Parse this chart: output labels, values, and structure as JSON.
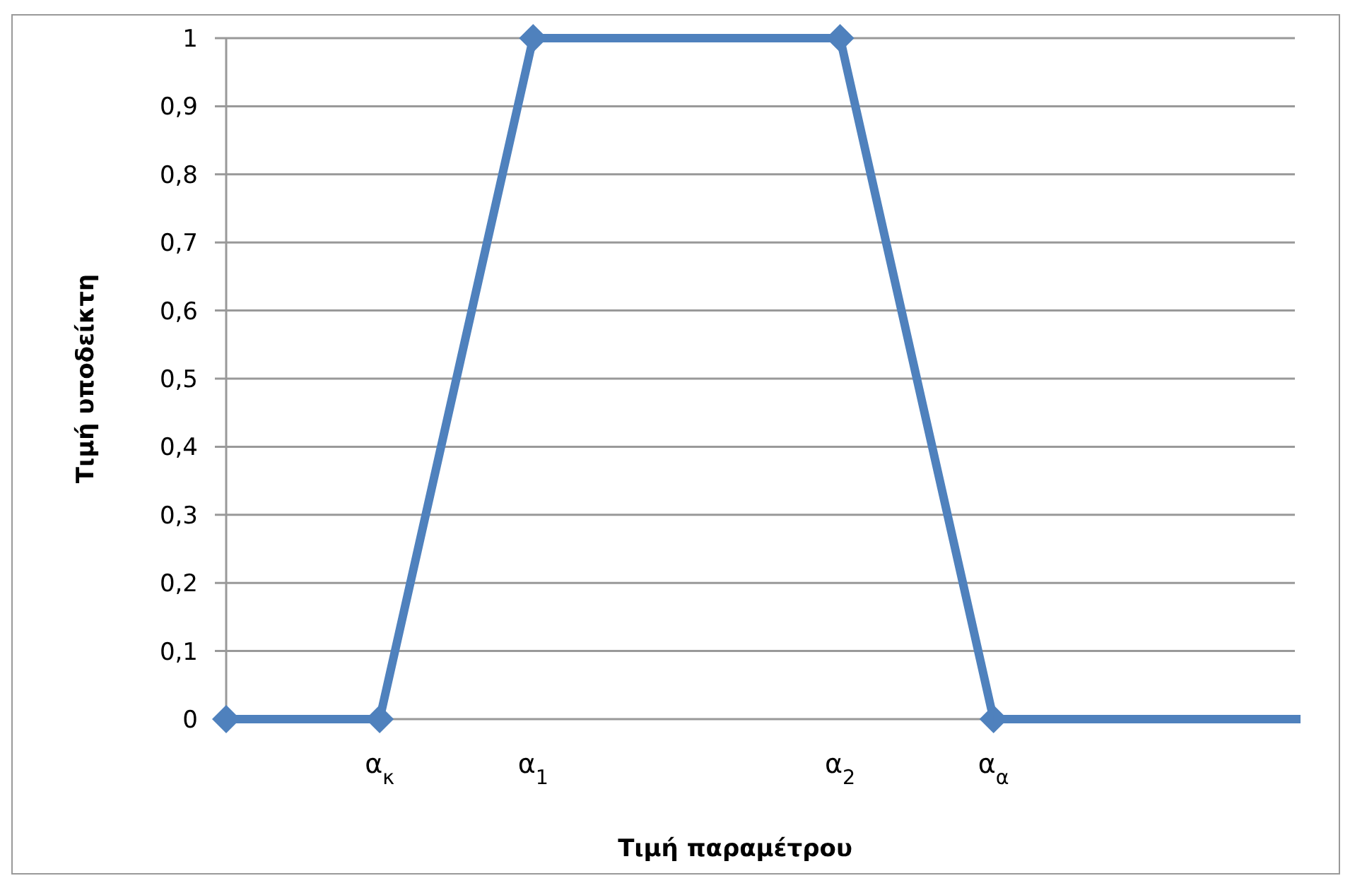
{
  "chart_data": {
    "type": "line",
    "xlabel": "Τιμή παραμέτρου",
    "ylabel": "Τιμή υποδείκτη",
    "categories": [
      null,
      "α$_{κ}$",
      "α$_{1}$",
      null,
      "α$_{2}$",
      "α$_{α}$",
      null,
      null
    ],
    "ylim": [
      0,
      1
    ],
    "yticks": [
      {
        "value": 0,
        "label": "0"
      },
      {
        "value": 0.1,
        "label": "0,1"
      },
      {
        "value": 0.2,
        "label": "0,2"
      },
      {
        "value": 0.3,
        "label": "0,3"
      },
      {
        "value": 0.4,
        "label": "0,4"
      },
      {
        "value": 0.5,
        "label": "0,5"
      },
      {
        "value": 0.6,
        "label": "0,6"
      },
      {
        "value": 0.7,
        "label": "0,7"
      },
      {
        "value": 0.8,
        "label": "0,8"
      },
      {
        "value": 0.9,
        "label": "0,9"
      },
      {
        "value": 1,
        "label": "1"
      }
    ],
    "grid": "y",
    "series": [
      {
        "color": "#4f81bd",
        "values": [
          0,
          0,
          1,
          null,
          1,
          0,
          null,
          null
        ],
        "marker": "diamond"
      },
      {
        "color": "#4f81bd",
        "values": [
          null,
          null,
          null,
          null,
          null,
          0,
          null,
          0
        ],
        "marker": "none"
      }
    ]
  }
}
